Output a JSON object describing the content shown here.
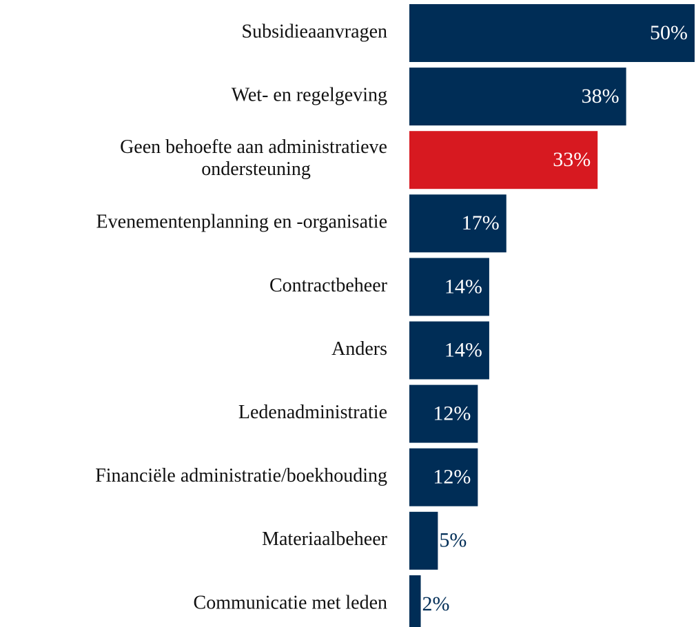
{
  "chart_data": {
    "type": "barh",
    "categories": [
      "Subsidieaanvragen",
      "Wet- en regelgeving",
      "Geen behoefte aan administratieve ondersteuning",
      "Evenementenplanning en -organisatie",
      "Contractbeheer",
      "Anders",
      "Ledenadministratie",
      "Financiële administratie/boekhouding",
      "Materiaalbeheer",
      "Communicatie met leden"
    ],
    "values": [
      50,
      38,
      33,
      17,
      14,
      14,
      12,
      12,
      5,
      2
    ],
    "value_labels": [
      "50%",
      "38%",
      "33%",
      "17%",
      "14%",
      "14%",
      "12%",
      "12%",
      "5%",
      "2%"
    ],
    "colors": [
      "#002d56",
      "#002d56",
      "#d71920",
      "#002d56",
      "#002d56",
      "#002d56",
      "#002d56",
      "#002d56",
      "#002d56",
      "#002d56"
    ],
    "xlim": [
      0,
      50
    ]
  }
}
